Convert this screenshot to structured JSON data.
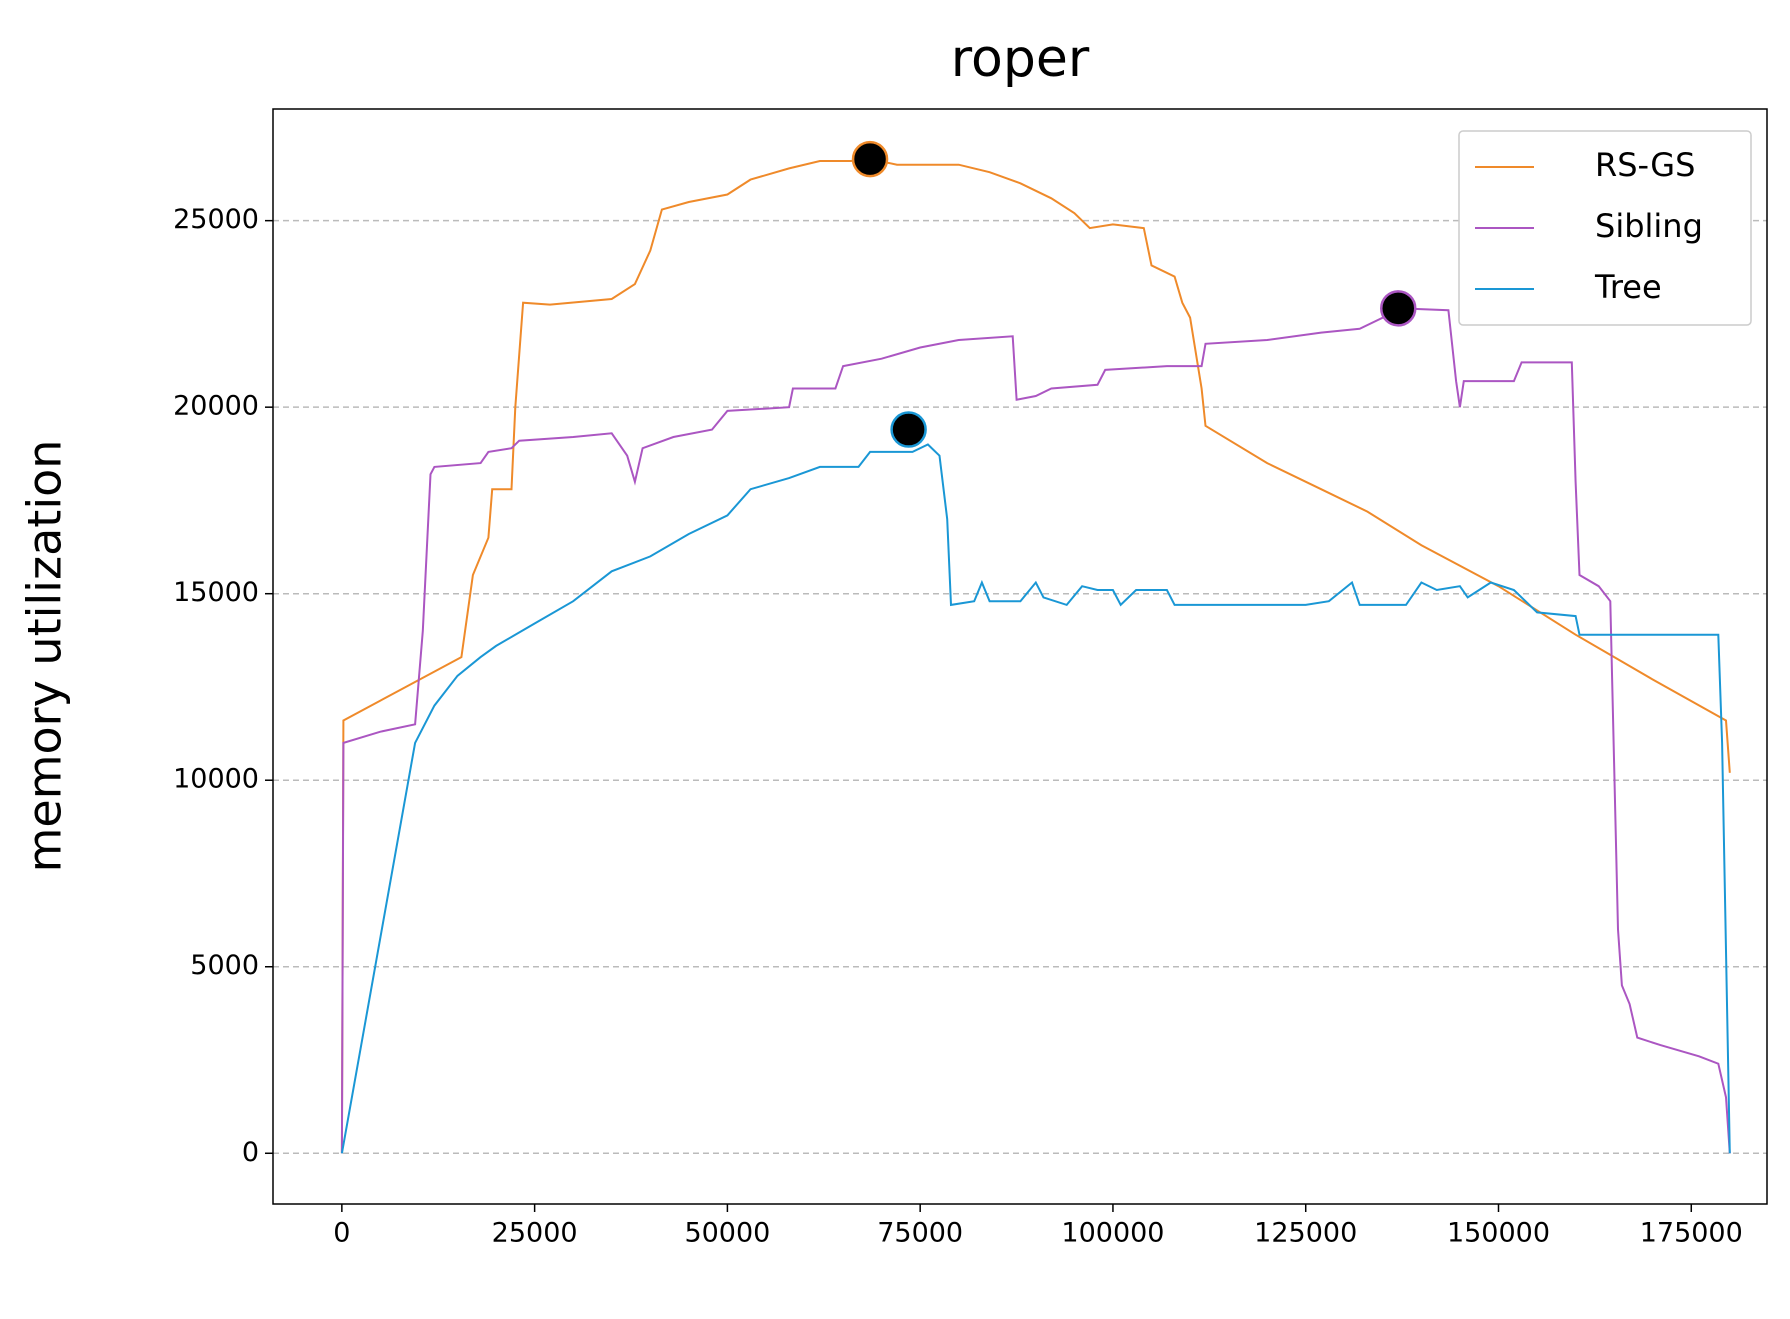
{
  "chart_data": {
    "type": "line",
    "title": "roper",
    "ylabel": "memory utilization",
    "xlim": [
      -8929,
      184821
    ],
    "ylim": [
      -1360,
      27993
    ],
    "xticks": [
      0,
      25000,
      50000,
      75000,
      100000,
      125000,
      150000,
      175000
    ],
    "yticks": [
      0,
      5000,
      10000,
      15000,
      20000,
      25000
    ],
    "grid": "y",
    "legend": "upper right",
    "series": [
      {
        "name": "RS-GS",
        "color": "#ef8a2a",
        "peak": {
          "x": 68500,
          "y": 26650
        },
        "x": [
          0,
          200,
          15500,
          17000,
          19000,
          19500,
          22000,
          22500,
          23500,
          27000,
          35000,
          38000,
          40000,
          41500,
          45000,
          50000,
          53000,
          58000,
          62000,
          66000,
          68500,
          72000,
          80000,
          84000,
          88000,
          92000,
          95000,
          97000,
          100000,
          104000,
          105000,
          108000,
          109000,
          110000,
          111500,
          112000,
          120000,
          127000,
          133000,
          140000,
          150000,
          160000,
          170000,
          179500,
          180000
        ],
        "values": [
          0,
          11600,
          13300,
          15500,
          16500,
          17800,
          17800,
          20000,
          22800,
          22750,
          22900,
          23300,
          24200,
          25300,
          25500,
          25700,
          26100,
          26400,
          26600,
          26600,
          26650,
          26500,
          26500,
          26300,
          26000,
          25600,
          25200,
          24800,
          24900,
          24800,
          23800,
          23500,
          22800,
          22400,
          20500,
          19500,
          18500,
          17800,
          17200,
          16300,
          15200,
          13900,
          12700,
          11600,
          10200
        ]
      },
      {
        "name": "Sibling",
        "color": "#ab56c2",
        "peak": {
          "x": 137000,
          "y": 22650
        },
        "x": [
          0,
          200,
          5000,
          9500,
          10500,
          11500,
          12000,
          18000,
          19000,
          22000,
          23000,
          30000,
          35000,
          37000,
          38000,
          39000,
          43000,
          48000,
          50000,
          58000,
          58500,
          64000,
          65000,
          70000,
          75000,
          80000,
          87000,
          87500,
          90000,
          92000,
          98000,
          99000,
          107000,
          111500,
          112000,
          120000,
          127000,
          132000,
          135000,
          137000,
          143500,
          144500,
          145000,
          145500,
          152000,
          153000,
          159500,
          160000,
          160500,
          163000,
          164500,
          165500,
          166000,
          167000,
          168000,
          171000,
          176000,
          178500,
          179500,
          180000
        ],
        "values": [
          0,
          11000,
          11300,
          11500,
          14000,
          18200,
          18400,
          18500,
          18800,
          18900,
          19100,
          19200,
          19300,
          18700,
          18000,
          18900,
          19200,
          19400,
          19900,
          20000,
          20500,
          20500,
          21100,
          21300,
          21600,
          21800,
          21900,
          20200,
          20300,
          20500,
          20600,
          21000,
          21100,
          21100,
          21700,
          21800,
          22000,
          22100,
          22400,
          22650,
          22600,
          20700,
          20000,
          20700,
          20700,
          21200,
          21200,
          18000,
          15500,
          15200,
          14800,
          6000,
          4500,
          4000,
          3100,
          2900,
          2600,
          2400,
          1500,
          0
        ]
      },
      {
        "name": "Tree",
        "color": "#1a97d5",
        "peak": {
          "x": 73500,
          "y": 19400
        },
        "x": [
          0,
          9500,
          12000,
          15000,
          18000,
          20000,
          25000,
          30000,
          35000,
          40000,
          45000,
          50000,
          53000,
          58000,
          62000,
          67000,
          68500,
          72000,
          74000,
          76000,
          77500,
          78500,
          79000,
          82000,
          83000,
          84000,
          88000,
          90000,
          91000,
          94000,
          96000,
          98000,
          100000,
          101000,
          103000,
          107000,
          108000,
          113000,
          120000,
          125000,
          128000,
          131000,
          132000,
          138000,
          140000,
          142000,
          145000,
          146000,
          149000,
          152000,
          155000,
          160000,
          160500,
          165000,
          178500,
          179000,
          180000
        ],
        "values": [
          0,
          11000,
          12000,
          12800,
          13300,
          13600,
          14200,
          14800,
          15600,
          16000,
          16600,
          17100,
          17800,
          18100,
          18400,
          18400,
          18800,
          18800,
          18800,
          19000,
          18700,
          17000,
          14700,
          14800,
          15300,
          14800,
          14800,
          15300,
          14900,
          14700,
          15200,
          15100,
          15100,
          14700,
          15100,
          15100,
          14700,
          14700,
          14700,
          14700,
          14800,
          15300,
          14700,
          14700,
          15300,
          15100,
          15200,
          14900,
          15300,
          15100,
          14500,
          14400,
          13900,
          13900,
          13900,
          11000,
          0
        ]
      }
    ]
  }
}
